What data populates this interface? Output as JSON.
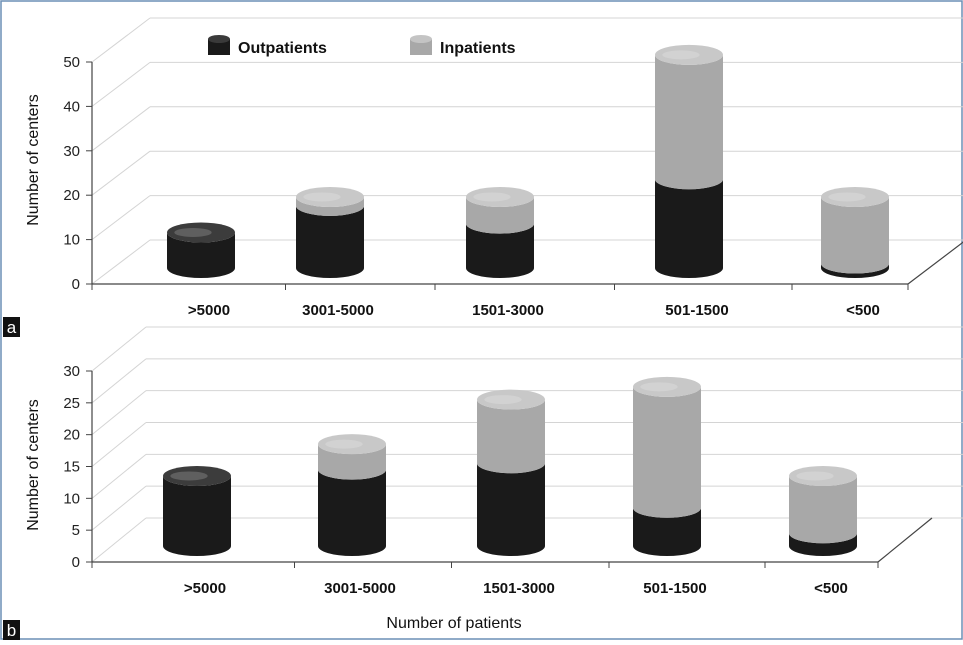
{
  "colors": {
    "outpatients": "#1a1a1a",
    "inpatients": "#a8a8a8",
    "grid": "#d4d4d4",
    "axis": "#444444",
    "frame": "#6b8fb5"
  },
  "legend": {
    "outpatients": "Outpatients",
    "inpatients": "Inpatients"
  },
  "chart_data": [
    {
      "panel_label": "a",
      "type": "bar",
      "stacked": true,
      "style": "3d-cylinder",
      "ylabel": "Number of centers",
      "xlabel": "",
      "ylim": [
        0,
        50
      ],
      "yticks": [
        "0",
        "10",
        "20",
        "30",
        "40",
        "50"
      ],
      "categories": [
        ">5000",
        "3001-5000",
        "1501-3000",
        "501-1500",
        "<500"
      ],
      "series": [
        {
          "name": "Outpatients",
          "values": [
            8,
            14,
            10,
            20,
            1
          ]
        },
        {
          "name": "Inpatients",
          "values": [
            0,
            2,
            6,
            28,
            15
          ]
        }
      ]
    },
    {
      "panel_label": "b",
      "type": "bar",
      "stacked": true,
      "style": "3d-cylinder",
      "ylabel": "Number of centers",
      "xlabel": "Number of patients",
      "ylim": [
        0,
        30
      ],
      "yticks": [
        "0",
        "5",
        "10",
        "15",
        "20",
        "25",
        "30"
      ],
      "categories": [
        ">5000",
        "3001-5000",
        "1501-3000",
        "501-1500",
        "<500"
      ],
      "series": [
        {
          "name": "Outpatients",
          "values": [
            11,
            12,
            13,
            6,
            2
          ]
        },
        {
          "name": "Inpatients",
          "values": [
            0,
            4,
            10,
            19,
            9
          ]
        }
      ]
    }
  ]
}
